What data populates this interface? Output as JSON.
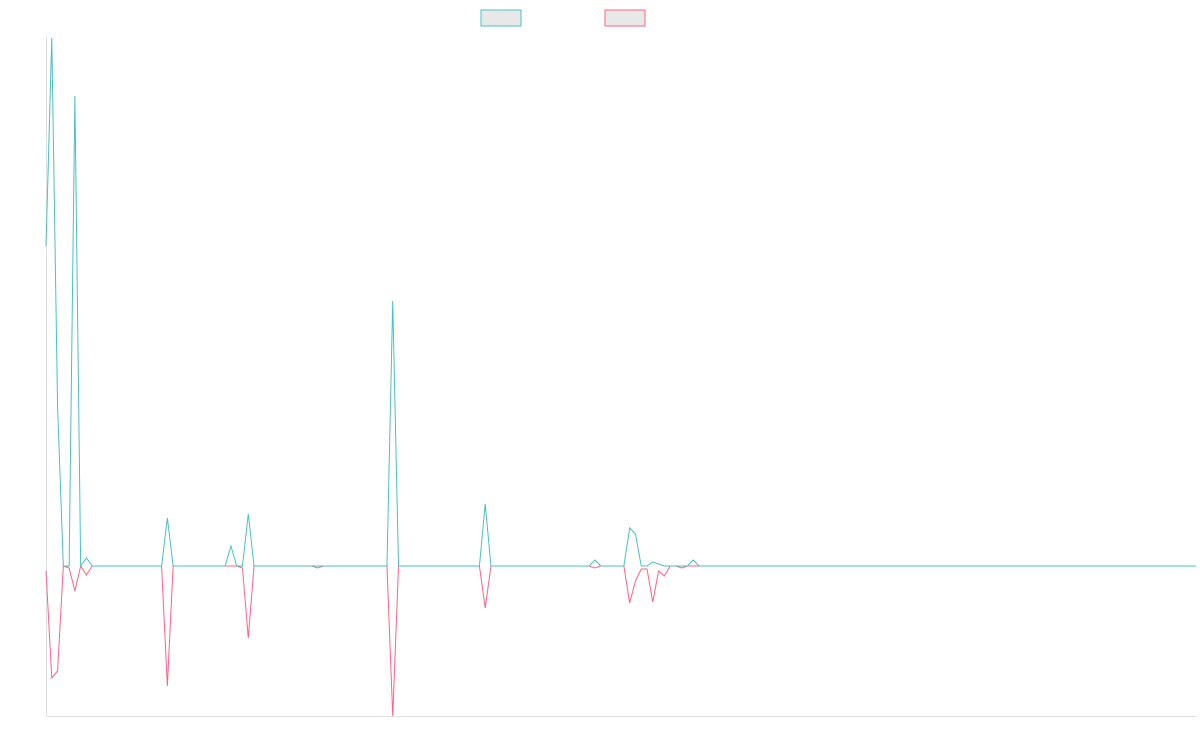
{
  "chart_data": {
    "type": "line",
    "title": "",
    "xlabel": "",
    "ylabel": "",
    "grid": false,
    "legend_position": "top-center",
    "x_count": 200,
    "ylim": [
      -150,
      530
    ],
    "colors": {
      "positive": "#4bc0c0",
      "negative": "#ff6384",
      "legend_fill": "#e8e8e8",
      "axis": "#e0e0e0"
    },
    "series": [
      {
        "key": "positive",
        "name": "",
        "spikes": [
          [
            0,
            320
          ],
          [
            1,
            528
          ],
          [
            2,
            160
          ],
          [
            3,
            0
          ],
          [
            4,
            0
          ],
          [
            5,
            470
          ],
          [
            6,
            0
          ],
          [
            7,
            8
          ],
          [
            21,
            48
          ],
          [
            22,
            0
          ],
          [
            25,
            0
          ],
          [
            26,
            0
          ],
          [
            32,
            20
          ],
          [
            33,
            0
          ],
          [
            34,
            0
          ],
          [
            35,
            52
          ],
          [
            36,
            0
          ],
          [
            47,
            0
          ],
          [
            60,
            265
          ],
          [
            61,
            0
          ],
          [
            76,
            62
          ],
          [
            77,
            0
          ],
          [
            95,
            6
          ],
          [
            96,
            0
          ],
          [
            101,
            38
          ],
          [
            102,
            32
          ],
          [
            103,
            0
          ],
          [
            104,
            0
          ],
          [
            105,
            4
          ],
          [
            106,
            2
          ],
          [
            110,
            0
          ],
          [
            112,
            6
          ],
          [
            113,
            0
          ]
        ]
      },
      {
        "key": "negative",
        "name": "",
        "spikes": [
          [
            0,
            -5
          ],
          [
            1,
            -112
          ],
          [
            2,
            -105
          ],
          [
            3,
            0
          ],
          [
            4,
            -2
          ],
          [
            5,
            -25
          ],
          [
            6,
            0
          ],
          [
            7,
            -9
          ],
          [
            21,
            -120
          ],
          [
            22,
            0
          ],
          [
            25,
            0
          ],
          [
            26,
            0
          ],
          [
            32,
            0
          ],
          [
            33,
            0
          ],
          [
            34,
            -2
          ],
          [
            35,
            -72
          ],
          [
            36,
            0
          ],
          [
            47,
            -2
          ],
          [
            60,
            -150
          ],
          [
            61,
            0
          ],
          [
            76,
            -42
          ],
          [
            77,
            0
          ],
          [
            95,
            -2
          ],
          [
            96,
            0
          ],
          [
            101,
            -37
          ],
          [
            102,
            -15
          ],
          [
            103,
            -3
          ],
          [
            104,
            -3
          ],
          [
            105,
            -36
          ],
          [
            106,
            -5
          ],
          [
            107,
            -10
          ],
          [
            110,
            -2
          ],
          [
            112,
            0
          ],
          [
            113,
            0
          ]
        ]
      }
    ]
  }
}
